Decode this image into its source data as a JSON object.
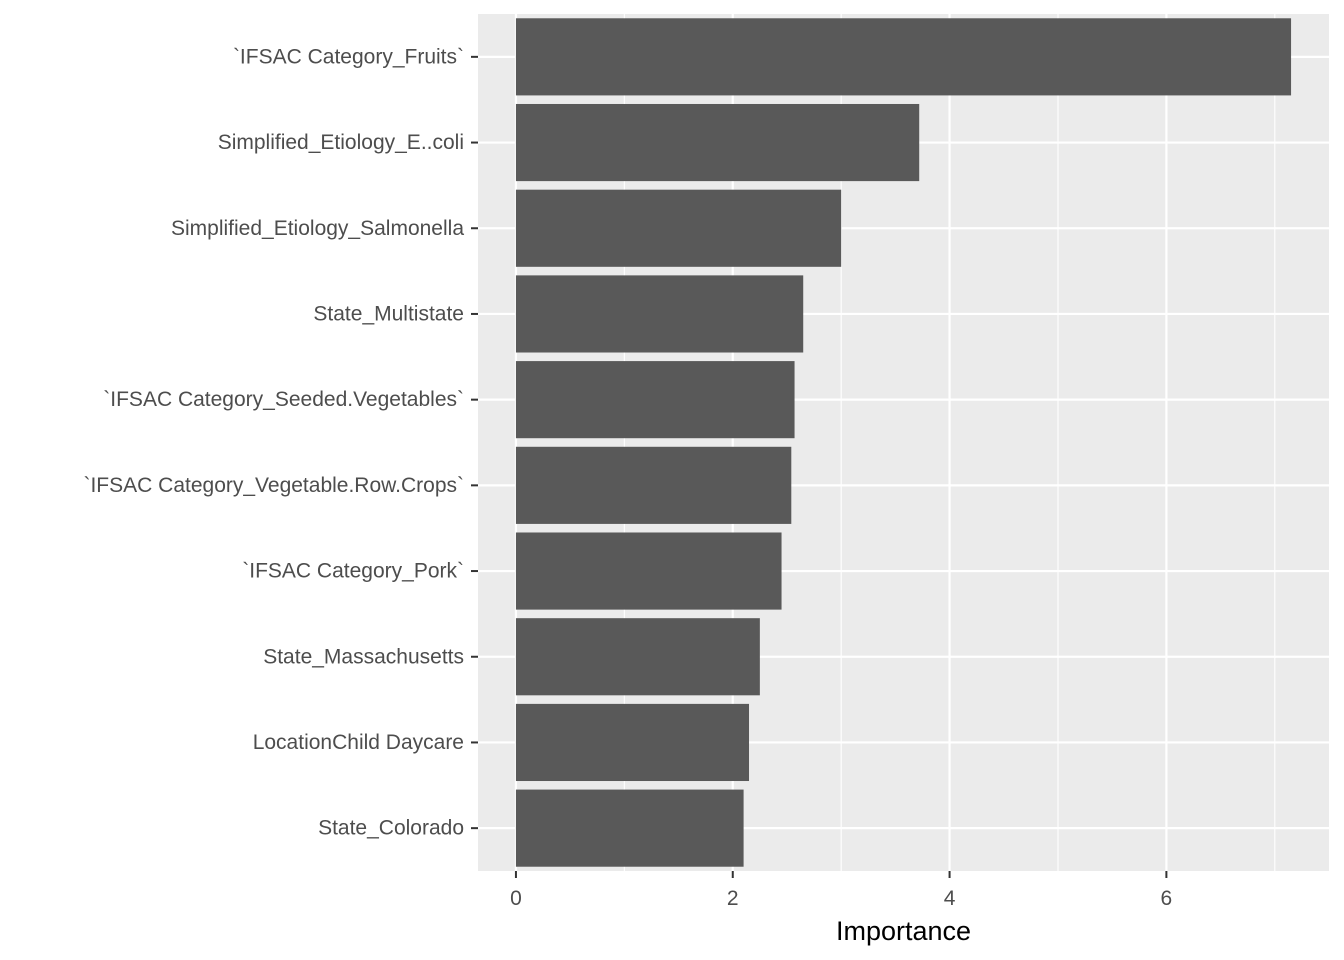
{
  "chart_data": {
    "type": "bar",
    "orientation": "horizontal",
    "categories": [
      "`IFSAC Category_Fruits`",
      "Simplified_Etiology_E..coli",
      "Simplified_Etiology_Salmonella",
      "State_Multistate",
      "`IFSAC Category_Seeded.Vegetables`",
      "`IFSAC Category_Vegetable.Row.Crops`",
      "`IFSAC Category_Pork`",
      "State_Massachusetts",
      "LocationChild Daycare",
      "State_Colorado"
    ],
    "values": [
      7.15,
      3.72,
      3.0,
      2.65,
      2.57,
      2.54,
      2.45,
      2.25,
      2.15,
      2.1
    ],
    "title": "",
    "xlabel": "Importance",
    "ylabel": "",
    "xlim": [
      -0.35,
      7.5
    ],
    "xticks": [
      0,
      2,
      4,
      6
    ],
    "grid": true,
    "legend": "none",
    "colors": {
      "bar": "#595959",
      "panel": "#ebebeb",
      "grid": "#ffffff"
    }
  }
}
